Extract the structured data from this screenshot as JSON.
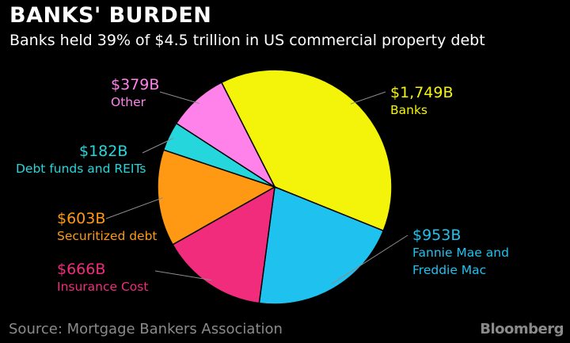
{
  "title": "BANKS' BURDEN",
  "subtitle": "Banks held 39% of $4.5 trillion in US commercial property debt",
  "source": "Source: Mortgage Bankers Association",
  "brand": "Bloomberg",
  "colors": {
    "background": "#000000",
    "banks": "#F4F30A",
    "fannie": "#1FC2EE",
    "insurance": "#F12C7C",
    "securitized": "#FF9913",
    "debtfunds": "#25D7DC",
    "other": "#FF82EA",
    "leader": "#8C8C8C"
  },
  "chart_data": {
    "type": "pie",
    "title": "BANKS' BURDEN",
    "subtitle": "Banks held 39% of $4.5 trillion in US commercial property debt",
    "unit": "$B",
    "slices": [
      {
        "key": "banks",
        "name": "Banks",
        "value": 1749,
        "value_label": "$1,749B",
        "color": "#F4F30A"
      },
      {
        "key": "fannie",
        "name": "Fannie Mae and Freddie Mac",
        "name_lines": [
          "Fannie Mae and",
          "Freddie Mac"
        ],
        "value": 953,
        "value_label": "$953B",
        "color": "#1FC2EE"
      },
      {
        "key": "insurance",
        "name": "Insurance Cost",
        "value": 666,
        "value_label": "$666B",
        "color": "#F12C7C"
      },
      {
        "key": "securitized",
        "name": "Securitized debt",
        "value": 603,
        "value_label": "$603B",
        "color": "#FF9913"
      },
      {
        "key": "debtfunds",
        "name": "Debt funds and REITs",
        "value": 182,
        "value_label": "$182B",
        "color": "#25D7DC"
      },
      {
        "key": "other",
        "name": "Other",
        "value": 379,
        "value_label": "$379B",
        "color": "#FF82EA"
      }
    ]
  }
}
